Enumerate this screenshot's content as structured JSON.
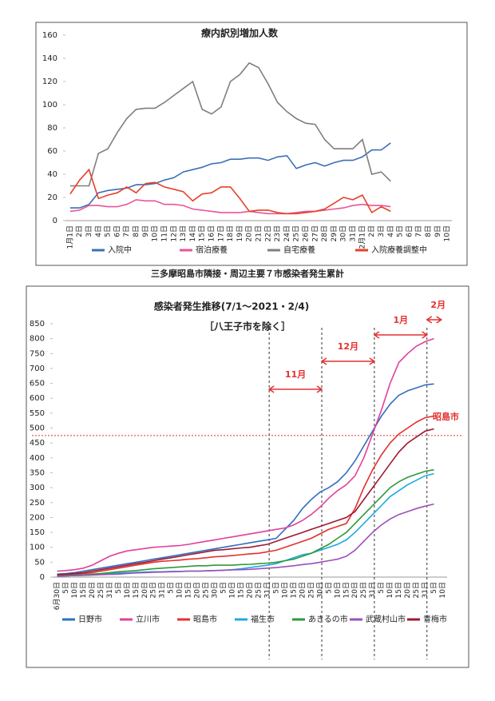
{
  "caption": "三多摩昭島市隣接・周辺主要７市感染者発生累計",
  "chart_data": [
    {
      "type": "line",
      "title": "療内訳別増加人数",
      "categories": [
        "1月1日",
        "2日",
        "3日",
        "4日",
        "5日",
        "6日",
        "7日",
        "8日",
        "9日",
        "10日",
        "11日",
        "12日",
        "13日",
        "14日",
        "15日",
        "16日",
        "17日",
        "18日",
        "19日",
        "20日",
        "21日",
        "22日",
        "23日",
        "24日",
        "25日",
        "26日",
        "27日",
        "28日",
        "29日",
        "30日",
        "31日",
        "2月1日",
        "2日",
        "3日",
        "4日",
        "5日",
        "6日",
        "7日",
        "8日",
        "9日",
        "10日"
      ],
      "ylim": [
        0,
        160
      ],
      "yticks": [
        0,
        20,
        40,
        60,
        80,
        100,
        120,
        140,
        160
      ],
      "grid": false,
      "legend": "bottom",
      "series": [
        {
          "name": "入院中",
          "color": "#3d6fb6",
          "values": [
            11,
            11,
            14,
            24,
            26,
            27,
            28,
            31,
            31,
            32,
            35,
            37,
            42,
            44,
            46,
            49,
            50,
            53,
            53,
            54,
            54,
            52,
            55,
            56,
            45,
            48,
            50,
            47,
            50,
            52,
            52,
            55,
            61,
            61,
            67,
            null,
            null,
            null,
            null,
            null,
            null
          ]
        },
        {
          "name": "宿泊療養",
          "color": "#e8559a",
          "values": [
            8,
            9,
            13,
            13,
            12,
            12,
            14,
            18,
            17,
            17,
            14,
            14,
            13,
            10,
            9,
            8,
            7,
            7,
            7,
            8,
            7,
            6,
            6,
            6,
            7,
            8,
            8,
            9,
            10,
            11,
            13,
            14,
            13,
            13,
            12,
            null,
            null,
            null,
            null,
            null,
            null
          ]
        },
        {
          "name": "自宅療養",
          "color": "#7f7f7f",
          "values": [
            30,
            30,
            30,
            58,
            62,
            76,
            88,
            96,
            97,
            97,
            102,
            108,
            114,
            120,
            96,
            92,
            98,
            120,
            126,
            136,
            132,
            118,
            102,
            94,
            88,
            84,
            83,
            70,
            62,
            62,
            62,
            70,
            40,
            42,
            34,
            null,
            null,
            null,
            null,
            null,
            null
          ]
        },
        {
          "name": "入院療養調整中",
          "color": "#e8402a",
          "values": [
            23,
            35,
            44,
            19,
            22,
            24,
            29,
            24,
            32,
            33,
            29,
            27,
            25,
            17,
            23,
            24,
            29,
            29,
            19,
            8,
            9,
            9,
            7,
            6,
            6,
            7,
            8,
            10,
            15,
            20,
            18,
            22,
            7,
            12,
            8,
            null,
            null,
            null,
            null,
            null,
            null
          ]
        }
      ]
    },
    {
      "type": "line",
      "title": "感染者発生推移(7/1～2021・2/4)",
      "subtitle": "［八王子市を除く］",
      "categories": [
        "6月30日",
        "5日",
        "10日",
        "15日",
        "20日",
        "25日",
        "31日",
        "5日",
        "10日",
        "15日",
        "20日",
        "25日",
        "31日",
        "5日",
        "10日",
        "15日",
        "20日",
        "25日",
        "30日",
        "5日",
        "10日",
        "15日",
        "20日",
        "25日",
        "31日",
        "5日",
        "10日",
        "15日",
        "20日",
        "25日",
        "30日",
        "5日",
        "10日",
        "15日",
        "20日",
        "25日",
        "31日",
        "5日",
        "10日",
        "15日",
        "20日",
        "25日",
        "31日",
        "5日",
        "10日"
      ],
      "ylim": [
        0,
        850
      ],
      "yticks": [
        0,
        50,
        100,
        150,
        200,
        250,
        300,
        350,
        400,
        450,
        500,
        550,
        600,
        650,
        700,
        750,
        800,
        850
      ],
      "grid": false,
      "legend": "bottom",
      "annotations": [
        "11月",
        "12月",
        "1月",
        "2月"
      ],
      "reference_line": {
        "value": 475,
        "label": "昭島市"
      },
      "series": [
        {
          "name": "日野市",
          "color": "#2e6fc0",
          "values": [
            10,
            12,
            15,
            20,
            25,
            30,
            35,
            40,
            45,
            50,
            55,
            60,
            65,
            70,
            75,
            80,
            85,
            90,
            95,
            100,
            105,
            110,
            115,
            120,
            125,
            130,
            160,
            190,
            230,
            260,
            285,
            300,
            320,
            350,
            390,
            440,
            490,
            540,
            580,
            610,
            625,
            635,
            645,
            648,
            null
          ]
        },
        {
          "name": "立川市",
          "color": "#e0409a",
          "values": [
            20,
            22,
            25,
            30,
            40,
            55,
            70,
            80,
            88,
            92,
            96,
            100,
            102,
            104,
            106,
            110,
            115,
            120,
            125,
            130,
            135,
            140,
            145,
            150,
            155,
            160,
            165,
            175,
            190,
            210,
            235,
            265,
            290,
            310,
            340,
            400,
            480,
            560,
            650,
            720,
            750,
            775,
            790,
            800,
            null
          ]
        },
        {
          "name": "昭島市",
          "color": "#e53030",
          "values": [
            5,
            8,
            10,
            12,
            15,
            20,
            25,
            30,
            35,
            40,
            45,
            50,
            53,
            55,
            57,
            60,
            62,
            65,
            68,
            70,
            72,
            75,
            78,
            80,
            85,
            90,
            100,
            110,
            120,
            130,
            145,
            160,
            170,
            180,
            230,
            300,
            360,
            410,
            450,
            480,
            500,
            520,
            535,
            540,
            null
          ]
        },
        {
          "name": "福生市",
          "color": "#20a8e0",
          "values": [
            3,
            4,
            5,
            6,
            8,
            10,
            12,
            14,
            15,
            16,
            17,
            18,
            18,
            19,
            19,
            20,
            20,
            21,
            22,
            23,
            25,
            28,
            32,
            36,
            40,
            45,
            55,
            65,
            75,
            80,
            90,
            100,
            110,
            125,
            150,
            180,
            210,
            240,
            270,
            290,
            310,
            325,
            340,
            347,
            null
          ]
        },
        {
          "name": "あきるの市",
          "color": "#2e9a3a",
          "values": [
            5,
            6,
            7,
            8,
            10,
            12,
            15,
            18,
            20,
            22,
            25,
            28,
            30,
            32,
            34,
            36,
            38,
            38,
            40,
            40,
            40,
            42,
            43,
            45,
            47,
            50,
            55,
            60,
            70,
            80,
            95,
            110,
            130,
            150,
            180,
            210,
            240,
            270,
            300,
            320,
            335,
            345,
            355,
            360,
            null
          ]
        },
        {
          "name": "武蔵村山市",
          "color": "#9a50b8",
          "values": [
            3,
            4,
            5,
            6,
            7,
            8,
            9,
            10,
            12,
            14,
            15,
            16,
            17,
            18,
            19,
            20,
            20,
            21,
            22,
            23,
            24,
            25,
            26,
            28,
            30,
            32,
            35,
            38,
            42,
            45,
            50,
            55,
            60,
            70,
            90,
            120,
            150,
            175,
            195,
            210,
            220,
            230,
            238,
            245,
            null
          ]
        },
        {
          "name": "青梅市",
          "color": "#a01830",
          "values": [
            8,
            10,
            12,
            15,
            20,
            25,
            30,
            35,
            40,
            45,
            50,
            55,
            60,
            65,
            70,
            75,
            80,
            85,
            90,
            92,
            95,
            98,
            100,
            105,
            110,
            120,
            130,
            140,
            150,
            160,
            170,
            180,
            190,
            200,
            220,
            260,
            300,
            340,
            380,
            420,
            450,
            470,
            490,
            497,
            null
          ]
        }
      ]
    }
  ]
}
